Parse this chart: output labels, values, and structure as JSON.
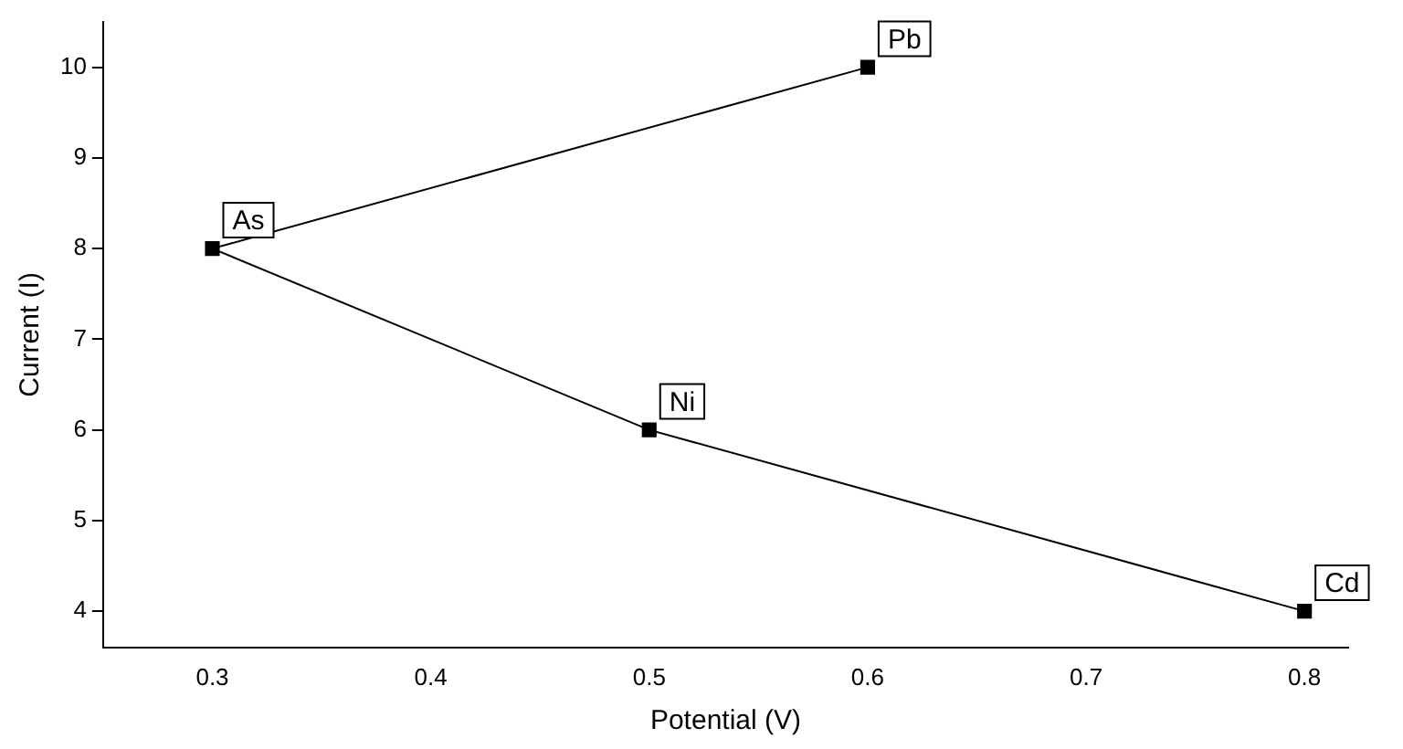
{
  "chart_data": {
    "type": "line",
    "xlabel": "Potential (V)",
    "ylabel": "Current (I)",
    "x": [
      0.6,
      0.3,
      0.5,
      0.8
    ],
    "values": [
      10,
      8,
      6,
      4
    ],
    "color": "#000000",
    "marker": "square",
    "line_style": "solid",
    "grid": false,
    "legend": false,
    "xlim": [
      0.25,
      0.82
    ],
    "ylim": [
      3.6,
      10.5
    ],
    "xticks": [
      0.3,
      0.4,
      0.5,
      0.6,
      0.7,
      0.8
    ],
    "yticks": [
      4,
      5,
      6,
      7,
      8,
      9,
      10
    ],
    "annotations": [
      {
        "text": "Pb",
        "x": 0.6,
        "y": 10
      },
      {
        "text": "As",
        "x": 0.3,
        "y": 8
      },
      {
        "text": "Ni",
        "x": 0.5,
        "y": 6
      },
      {
        "text": "Cd",
        "x": 0.8,
        "y": 4
      }
    ]
  }
}
